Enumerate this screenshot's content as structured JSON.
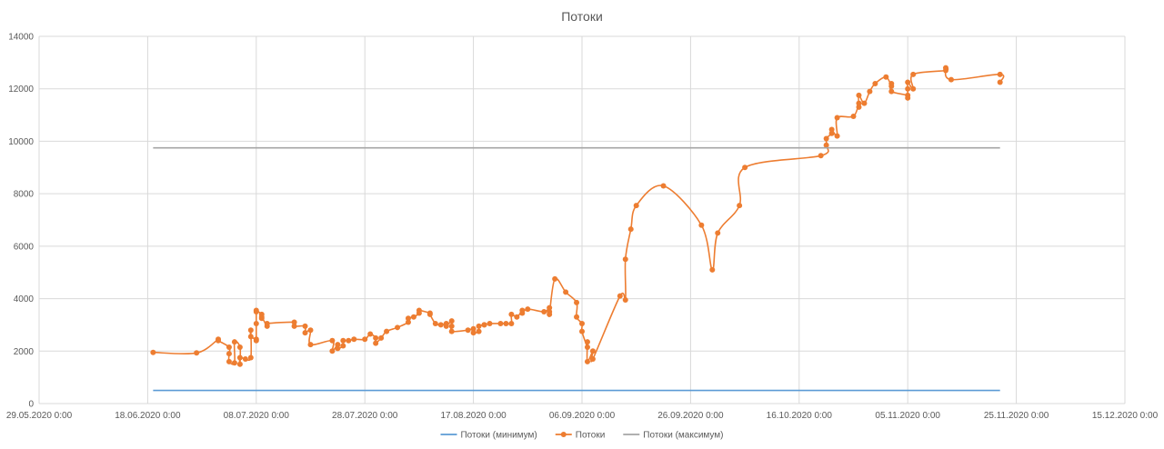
{
  "chart_data": {
    "type": "line",
    "title": "Потоки",
    "xlabel": "",
    "ylabel": "",
    "ylim": [
      0,
      14000
    ],
    "y_ticks": [
      0,
      2000,
      4000,
      6000,
      8000,
      10000,
      12000,
      14000
    ],
    "x_ticks": [
      "29.05.2020 0:00",
      "18.06.2020 0:00",
      "08.07.2020 0:00",
      "28.07.2020 0:00",
      "17.08.2020 0:00",
      "06.09.2020 0:00",
      "26.09.2020 0:00",
      "16.10.2020 0:00",
      "05.11.2020 0:00",
      "25.11.2020 0:00",
      "15.12.2020 0:00"
    ],
    "x_range": [
      "2020-05-29",
      "2020-12-15"
    ],
    "grid": true,
    "legend_position": "bottom",
    "series": [
      {
        "name": "Потоки (минимум)",
        "color": "#5b9bd5",
        "markers": false,
        "points": [
          [
            "2020-06-19",
            500
          ],
          [
            "2020-11-22",
            500
          ]
        ]
      },
      {
        "name": "Потоки",
        "color": "#ed7d31",
        "markers": true,
        "smooth": true,
        "points": [
          [
            "2020-06-19",
            1950
          ],
          [
            "2020-06-27",
            1930
          ],
          [
            "2020-07-01",
            2450
          ],
          [
            "2020-07-01",
            2400
          ],
          [
            "2020-07-03",
            2150
          ],
          [
            "2020-07-03",
            1900
          ],
          [
            "2020-07-03",
            1600
          ],
          [
            "2020-07-04",
            1550
          ],
          [
            "2020-07-04",
            2350
          ],
          [
            "2020-07-05",
            2150
          ],
          [
            "2020-07-05",
            1500
          ],
          [
            "2020-07-05",
            1750
          ],
          [
            "2020-07-06",
            1700
          ],
          [
            "2020-07-07",
            1750
          ],
          [
            "2020-07-07",
            2800
          ],
          [
            "2020-07-07",
            2550
          ],
          [
            "2020-07-08",
            2450
          ],
          [
            "2020-07-08",
            2400
          ],
          [
            "2020-07-08",
            3050
          ],
          [
            "2020-07-08",
            3500
          ],
          [
            "2020-07-08",
            3550
          ],
          [
            "2020-07-09",
            3400
          ],
          [
            "2020-07-09",
            3250
          ],
          [
            "2020-07-09",
            3300
          ],
          [
            "2020-07-10",
            2950
          ],
          [
            "2020-07-10",
            3050
          ],
          [
            "2020-07-15",
            3100
          ],
          [
            "2020-07-15",
            2950
          ],
          [
            "2020-07-17",
            2950
          ],
          [
            "2020-07-17",
            2700
          ],
          [
            "2020-07-18",
            2800
          ],
          [
            "2020-07-18",
            2250
          ],
          [
            "2020-07-22",
            2400
          ],
          [
            "2020-07-22",
            2000
          ],
          [
            "2020-07-23",
            2250
          ],
          [
            "2020-07-23",
            2100
          ],
          [
            "2020-07-24",
            2200
          ],
          [
            "2020-07-24",
            2400
          ],
          [
            "2020-07-25",
            2400
          ],
          [
            "2020-07-26",
            2450
          ],
          [
            "2020-07-28",
            2450
          ],
          [
            "2020-07-29",
            2650
          ],
          [
            "2020-07-30",
            2500
          ],
          [
            "2020-07-30",
            2300
          ],
          [
            "2020-07-31",
            2500
          ],
          [
            "2020-08-01",
            2750
          ],
          [
            "2020-08-03",
            2900
          ],
          [
            "2020-08-05",
            3100
          ],
          [
            "2020-08-05",
            3250
          ],
          [
            "2020-08-06",
            3300
          ],
          [
            "2020-08-07",
            3450
          ],
          [
            "2020-08-07",
            3550
          ],
          [
            "2020-08-09",
            3450
          ],
          [
            "2020-08-09",
            3400
          ],
          [
            "2020-08-10",
            3050
          ],
          [
            "2020-08-11",
            3000
          ],
          [
            "2020-08-12",
            3050
          ],
          [
            "2020-08-12",
            2950
          ],
          [
            "2020-08-13",
            3150
          ],
          [
            "2020-08-13",
            2950
          ],
          [
            "2020-08-13",
            2750
          ],
          [
            "2020-08-16",
            2800
          ],
          [
            "2020-08-17",
            2850
          ],
          [
            "2020-08-17",
            2700
          ],
          [
            "2020-08-18",
            2750
          ],
          [
            "2020-08-18",
            2950
          ],
          [
            "2020-08-19",
            3000
          ],
          [
            "2020-08-19",
            3000
          ],
          [
            "2020-08-20",
            3050
          ],
          [
            "2020-08-22",
            3050
          ],
          [
            "2020-08-23",
            3050
          ],
          [
            "2020-08-24",
            3050
          ],
          [
            "2020-08-24",
            3400
          ],
          [
            "2020-08-25",
            3300
          ],
          [
            "2020-08-26",
            3550
          ],
          [
            "2020-08-26",
            3450
          ],
          [
            "2020-08-27",
            3600
          ],
          [
            "2020-08-30",
            3500
          ],
          [
            "2020-08-31",
            3650
          ],
          [
            "2020-08-31",
            3500
          ],
          [
            "2020-08-31",
            3400
          ],
          [
            "2020-09-01",
            4750
          ],
          [
            "2020-09-03",
            4250
          ],
          [
            "2020-09-05",
            3850
          ],
          [
            "2020-09-05",
            3300
          ],
          [
            "2020-09-06",
            3050
          ],
          [
            "2020-09-06",
            2750
          ],
          [
            "2020-09-07",
            2150
          ],
          [
            "2020-09-07",
            2350
          ],
          [
            "2020-09-07",
            1600
          ],
          [
            "2020-09-08",
            2000
          ],
          [
            "2020-09-08",
            1700
          ],
          [
            "2020-09-13",
            4100
          ],
          [
            "2020-09-14",
            3950
          ],
          [
            "2020-09-14",
            5500
          ],
          [
            "2020-09-15",
            6650
          ],
          [
            "2020-09-16",
            7550
          ],
          [
            "2020-09-21",
            8300
          ],
          [
            "2020-09-28",
            6800
          ],
          [
            "2020-09-30",
            5100
          ],
          [
            "2020-10-01",
            6500
          ],
          [
            "2020-10-05",
            7550
          ],
          [
            "2020-10-06",
            9000
          ],
          [
            "2020-10-20",
            9450
          ],
          [
            "2020-10-21",
            9850
          ],
          [
            "2020-10-21",
            10100
          ],
          [
            "2020-10-22",
            10300
          ],
          [
            "2020-10-22",
            10450
          ],
          [
            "2020-10-23",
            10200
          ],
          [
            "2020-10-23",
            10900
          ],
          [
            "2020-10-26",
            10950
          ],
          [
            "2020-10-27",
            11450
          ],
          [
            "2020-10-27",
            11300
          ],
          [
            "2020-10-27",
            11750
          ],
          [
            "2020-10-28",
            11450
          ],
          [
            "2020-10-29",
            11900
          ],
          [
            "2020-10-30",
            12200
          ],
          [
            "2020-11-01",
            12450
          ],
          [
            "2020-11-02",
            12100
          ],
          [
            "2020-11-02",
            12200
          ],
          [
            "2020-11-02",
            11900
          ],
          [
            "2020-11-05",
            11750
          ],
          [
            "2020-11-05",
            11650
          ],
          [
            "2020-11-05",
            12000
          ],
          [
            "2020-11-05",
            12250
          ],
          [
            "2020-11-06",
            12000
          ],
          [
            "2020-11-06",
            12550
          ],
          [
            "2020-11-12",
            12700
          ],
          [
            "2020-11-12",
            12800
          ],
          [
            "2020-11-13",
            12350
          ],
          [
            "2020-11-22",
            12550
          ],
          [
            "2020-11-22",
            12250
          ]
        ]
      },
      {
        "name": "Потоки (максимум)",
        "color": "#a5a5a5",
        "markers": false,
        "points": [
          [
            "2020-06-19",
            9750
          ],
          [
            "2020-11-22",
            9750
          ]
        ]
      }
    ]
  }
}
